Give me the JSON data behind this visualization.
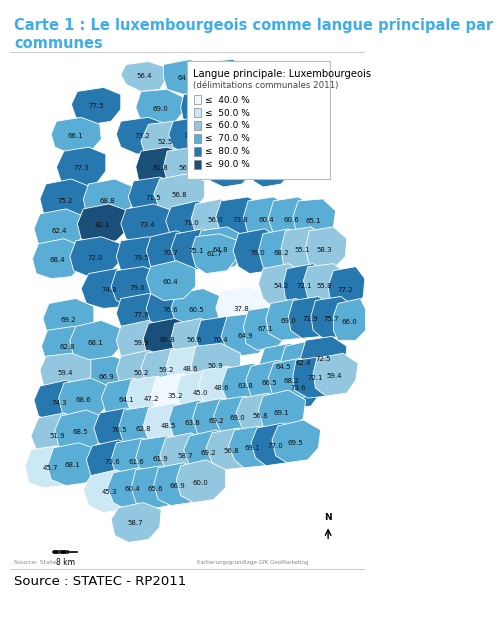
{
  "title_line1": "Carte 1 : Le luxembourgeois comme langue principale par",
  "title_line2": "communes",
  "source": "Source : STATEC - RP2011",
  "source_small1": "Source: Statec",
  "source_small2": "Kartierungsgrundlage GfK GeoMarketing",
  "legend_title": "Langue principale: Luxembourgeois",
  "legend_subtitle": "(délimitations communales 2011)",
  "legend_labels": [
    "≤  40.0 %",
    "≤  50.0 %",
    "≤  60.0 %",
    "≤  70.0 %",
    "≤  80.0 %",
    "≤  90.0 %"
  ],
  "legend_colors": [
    "#f0f8ff",
    "#cde8f5",
    "#93c7e0",
    "#5aadd4",
    "#2878b0",
    "#1a4f7a"
  ],
  "bg_color": "#ffffff",
  "title_color": "#3daee9",
  "scale_bar_text": "8 km"
}
